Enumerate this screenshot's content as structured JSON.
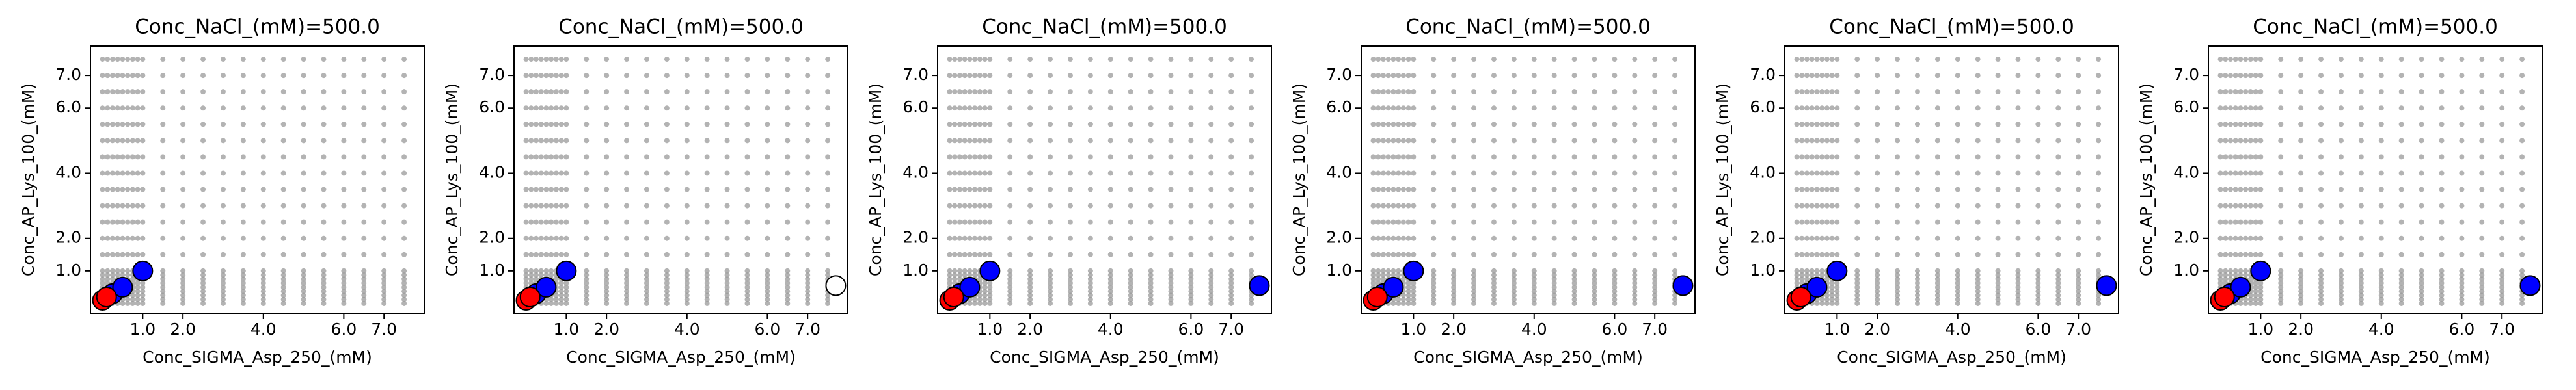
{
  "chart_data": [
    {
      "type": "scatter",
      "title": "Conc_NaCl_(mM)=500.0",
      "x_label": "Conc_SIGMA_Asp_250_(mM)",
      "y_label": "Conc_AP_Lys_100_(mM)",
      "xlim": [
        -0.3,
        8.0
      ],
      "ylim": [
        -0.3,
        7.9
      ],
      "xticks": [
        {
          "value": 1,
          "label": "1.0"
        },
        {
          "value": 2,
          "label": "2.0"
        },
        {
          "value": 4,
          "label": "4.0"
        },
        {
          "value": 6,
          "label": "6.0"
        },
        {
          "value": 7,
          "label": "7.0"
        }
      ],
      "yticks": [
        {
          "value": 1,
          "label": "1.0"
        },
        {
          "value": 2,
          "label": "2.0"
        },
        {
          "value": 4,
          "label": "4.0"
        },
        {
          "value": 6,
          "label": "6.0"
        },
        {
          "value": 7,
          "label": "7.0"
        }
      ],
      "series": [
        {
          "color": "#999999",
          "x_grid": [
            0,
            0.125,
            0.25,
            0.375,
            0.5,
            0.625,
            0.75,
            0.875,
            1,
            1.5,
            2,
            2.5,
            3,
            3.5,
            4,
            4.5,
            5,
            5.5,
            6,
            6.5,
            7,
            7.5
          ],
          "y_grid": [
            0,
            0.125,
            0.25,
            0.375,
            0.5,
            0.625,
            0.75,
            0.875,
            1,
            1.5,
            2,
            2.5,
            3,
            3.5,
            4,
            4.5,
            5,
            5.5,
            6,
            6.5,
            7,
            7.5
          ]
        },
        {
          "color": "#0000ff",
          "x": [
            0.25,
            0.5,
            1
          ],
          "y": [
            0.3,
            0.5,
            1
          ]
        },
        {
          "color": "#ff0000",
          "x": [
            0,
            0.1
          ],
          "y": [
            0.1,
            0.2
          ]
        }
      ]
    },
    {
      "type": "scatter",
      "title": "Conc_NaCl_(mM)=500.0",
      "x_label": "Conc_SIGMA_Asp_250_(mM)",
      "y_label": "Conc_AP_Lys_100_(mM)",
      "xlim": [
        -0.3,
        8.0
      ],
      "ylim": [
        -0.3,
        7.9
      ],
      "xticks": [
        {
          "value": 1,
          "label": "1.0"
        },
        {
          "value": 2,
          "label": "2.0"
        },
        {
          "value": 4,
          "label": "4.0"
        },
        {
          "value": 6,
          "label": "6.0"
        },
        {
          "value": 7,
          "label": "7.0"
        }
      ],
      "yticks": [
        {
          "value": 1,
          "label": "1.0"
        },
        {
          "value": 2,
          "label": "2.0"
        },
        {
          "value": 4,
          "label": "4.0"
        },
        {
          "value": 6,
          "label": "6.0"
        },
        {
          "value": 7,
          "label": "7.0"
        }
      ],
      "series": [
        {
          "color": "#999999",
          "x_grid": [
            0,
            0.125,
            0.25,
            0.375,
            0.5,
            0.625,
            0.75,
            0.875,
            1,
            1.5,
            2,
            2.5,
            3,
            3.5,
            4,
            4.5,
            5,
            5.5,
            6,
            6.5,
            7,
            7.5
          ],
          "y_grid": [
            0,
            0.125,
            0.25,
            0.375,
            0.5,
            0.625,
            0.75,
            0.875,
            1,
            1.5,
            2,
            2.5,
            3,
            3.5,
            4,
            4.5,
            5,
            5.5,
            6,
            6.5,
            7,
            7.5
          ]
        },
        {
          "color": "#ffffff",
          "x": [
            7.7
          ],
          "y": [
            0.55
          ]
        },
        {
          "color": "#0000ff",
          "x": [
            0.25,
            0.5,
            1
          ],
          "y": [
            0.3,
            0.5,
            1
          ]
        },
        {
          "color": "#ff0000",
          "x": [
            0,
            0.1
          ],
          "y": [
            0.1,
            0.2
          ]
        }
      ]
    },
    {
      "type": "scatter",
      "title": "Conc_NaCl_(mM)=500.0",
      "x_label": "Conc_SIGMA_Asp_250_(mM)",
      "y_label": "Conc_AP_Lys_100_(mM)",
      "xlim": [
        -0.3,
        8.0
      ],
      "ylim": [
        -0.3,
        7.9
      ],
      "xticks": [
        {
          "value": 1,
          "label": "1.0"
        },
        {
          "value": 2,
          "label": "2.0"
        },
        {
          "value": 4,
          "label": "4.0"
        },
        {
          "value": 6,
          "label": "6.0"
        },
        {
          "value": 7,
          "label": "7.0"
        }
      ],
      "yticks": [
        {
          "value": 1,
          "label": "1.0"
        },
        {
          "value": 2,
          "label": "2.0"
        },
        {
          "value": 4,
          "label": "4.0"
        },
        {
          "value": 6,
          "label": "6.0"
        },
        {
          "value": 7,
          "label": "7.0"
        }
      ],
      "series": [
        {
          "color": "#999999",
          "x_grid": [
            0,
            0.125,
            0.25,
            0.375,
            0.5,
            0.625,
            0.75,
            0.875,
            1,
            1.5,
            2,
            2.5,
            3,
            3.5,
            4,
            4.5,
            5,
            5.5,
            6,
            6.5,
            7,
            7.5
          ],
          "y_grid": [
            0,
            0.125,
            0.25,
            0.375,
            0.5,
            0.625,
            0.75,
            0.875,
            1,
            1.5,
            2,
            2.5,
            3,
            3.5,
            4,
            4.5,
            5,
            5.5,
            6,
            6.5,
            7,
            7.5
          ]
        },
        {
          "color": "#0000ff",
          "x": [
            0.25,
            0.5,
            1,
            7.7
          ],
          "y": [
            0.3,
            0.5,
            1,
            0.55
          ]
        },
        {
          "color": "#ff0000",
          "x": [
            0,
            0.1
          ],
          "y": [
            0.1,
            0.2
          ]
        }
      ]
    },
    {
      "type": "scatter",
      "title": "Conc_NaCl_(mM)=500.0",
      "x_label": "Conc_SIGMA_Asp_250_(mM)",
      "y_label": "Conc_AP_Lys_100_(mM)",
      "xlim": [
        -0.3,
        8.0
      ],
      "ylim": [
        -0.3,
        7.9
      ],
      "xticks": [
        {
          "value": 1,
          "label": "1.0"
        },
        {
          "value": 2,
          "label": "2.0"
        },
        {
          "value": 4,
          "label": "4.0"
        },
        {
          "value": 6,
          "label": "6.0"
        },
        {
          "value": 7,
          "label": "7.0"
        }
      ],
      "yticks": [
        {
          "value": 1,
          "label": "1.0"
        },
        {
          "value": 2,
          "label": "2.0"
        },
        {
          "value": 4,
          "label": "4.0"
        },
        {
          "value": 6,
          "label": "6.0"
        },
        {
          "value": 7,
          "label": "7.0"
        }
      ],
      "series": [
        {
          "color": "#999999",
          "x_grid": [
            0,
            0.125,
            0.25,
            0.375,
            0.5,
            0.625,
            0.75,
            0.875,
            1,
            1.5,
            2,
            2.5,
            3,
            3.5,
            4,
            4.5,
            5,
            5.5,
            6,
            6.5,
            7,
            7.5
          ],
          "y_grid": [
            0,
            0.125,
            0.25,
            0.375,
            0.5,
            0.625,
            0.75,
            0.875,
            1,
            1.5,
            2,
            2.5,
            3,
            3.5,
            4,
            4.5,
            5,
            5.5,
            6,
            6.5,
            7,
            7.5
          ]
        },
        {
          "color": "#0000ff",
          "x": [
            0.25,
            0.5,
            1,
            7.7
          ],
          "y": [
            0.3,
            0.5,
            1,
            0.55
          ]
        },
        {
          "color": "#ff0000",
          "x": [
            0,
            0.1
          ],
          "y": [
            0.1,
            0.2
          ]
        }
      ]
    },
    {
      "type": "scatter",
      "title": "Conc_NaCl_(mM)=500.0",
      "x_label": "Conc_SIGMA_Asp_250_(mM)",
      "y_label": "Conc_AP_Lys_100_(mM)",
      "xlim": [
        -0.3,
        8.0
      ],
      "ylim": [
        -0.3,
        7.9
      ],
      "xticks": [
        {
          "value": 1,
          "label": "1.0"
        },
        {
          "value": 2,
          "label": "2.0"
        },
        {
          "value": 4,
          "label": "4.0"
        },
        {
          "value": 6,
          "label": "6.0"
        },
        {
          "value": 7,
          "label": "7.0"
        }
      ],
      "yticks": [
        {
          "value": 1,
          "label": "1.0"
        },
        {
          "value": 2,
          "label": "2.0"
        },
        {
          "value": 4,
          "label": "4.0"
        },
        {
          "value": 6,
          "label": "6.0"
        },
        {
          "value": 7,
          "label": "7.0"
        }
      ],
      "series": [
        {
          "color": "#999999",
          "x_grid": [
            0,
            0.125,
            0.25,
            0.375,
            0.5,
            0.625,
            0.75,
            0.875,
            1,
            1.5,
            2,
            2.5,
            3,
            3.5,
            4,
            4.5,
            5,
            5.5,
            6,
            6.5,
            7,
            7.5
          ],
          "y_grid": [
            0,
            0.125,
            0.25,
            0.375,
            0.5,
            0.625,
            0.75,
            0.875,
            1,
            1.5,
            2,
            2.5,
            3,
            3.5,
            4,
            4.5,
            5,
            5.5,
            6,
            6.5,
            7,
            7.5
          ]
        },
        {
          "color": "#0000ff",
          "x": [
            0.25,
            0.5,
            1,
            7.7
          ],
          "y": [
            0.3,
            0.5,
            1,
            0.55
          ]
        },
        {
          "color": "#ff0000",
          "x": [
            0,
            0.1
          ],
          "y": [
            0.1,
            0.2
          ]
        }
      ]
    },
    {
      "type": "scatter",
      "title": "Conc_NaCl_(mM)=500.0",
      "x_label": "Conc_SIGMA_Asp_250_(mM)",
      "y_label": "Conc_AP_Lys_100_(mM)",
      "xlim": [
        -0.3,
        8.0
      ],
      "ylim": [
        -0.3,
        7.9
      ],
      "xticks": [
        {
          "value": 1,
          "label": "1.0"
        },
        {
          "value": 2,
          "label": "2.0"
        },
        {
          "value": 4,
          "label": "4.0"
        },
        {
          "value": 6,
          "label": "6.0"
        },
        {
          "value": 7,
          "label": "7.0"
        }
      ],
      "yticks": [
        {
          "value": 1,
          "label": "1.0"
        },
        {
          "value": 2,
          "label": "2.0"
        },
        {
          "value": 4,
          "label": "4.0"
        },
        {
          "value": 6,
          "label": "6.0"
        },
        {
          "value": 7,
          "label": "7.0"
        }
      ],
      "series": [
        {
          "color": "#999999",
          "x_grid": [
            0,
            0.125,
            0.25,
            0.375,
            0.5,
            0.625,
            0.75,
            0.875,
            1,
            1.5,
            2,
            2.5,
            3,
            3.5,
            4,
            4.5,
            5,
            5.5,
            6,
            6.5,
            7,
            7.5
          ],
          "y_grid": [
            0,
            0.125,
            0.25,
            0.375,
            0.5,
            0.625,
            0.75,
            0.875,
            1,
            1.5,
            2,
            2.5,
            3,
            3.5,
            4,
            4.5,
            5,
            5.5,
            6,
            6.5,
            7,
            7.5
          ]
        },
        {
          "color": "#0000ff",
          "x": [
            0.25,
            0.5,
            1,
            7.7
          ],
          "y": [
            0.3,
            0.5,
            1,
            0.55
          ]
        },
        {
          "color": "#ff0000",
          "x": [
            0,
            0.1
          ],
          "y": [
            0.1,
            0.2
          ]
        }
      ]
    }
  ]
}
